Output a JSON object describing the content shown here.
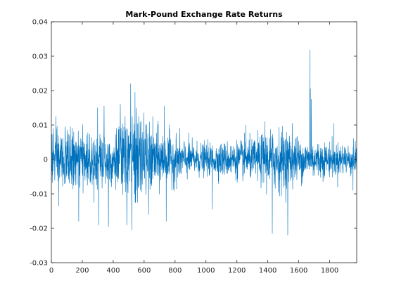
{
  "chart_data": {
    "type": "line",
    "title": "Mark-Pound Exchange Rate Returns",
    "xlabel": "",
    "ylabel": "",
    "xlim": [
      0,
      1975
    ],
    "ylim": [
      -0.03,
      0.04
    ],
    "x_ticks": [
      0,
      200,
      400,
      600,
      800,
      1000,
      1200,
      1400,
      1600,
      1800
    ],
    "x_tick_labels": [
      "0",
      "200",
      "400",
      "600",
      "800",
      "1000",
      "1200",
      "1400",
      "1600",
      "1800"
    ],
    "y_ticks": [
      -0.03,
      -0.02,
      -0.01,
      0,
      0.01,
      0.02,
      0.03,
      0.04
    ],
    "y_tick_labels": [
      "-0.03",
      "-0.02",
      "-0.01",
      "0",
      "0.01",
      "0.02",
      "0.03",
      "0.04"
    ],
    "grid": false,
    "n_points": 1975,
    "series_color": "#0072bd",
    "volatility_profile": [
      [
        0,
        0.0045
      ],
      [
        100,
        0.0042
      ],
      [
        200,
        0.0038
      ],
      [
        300,
        0.0042
      ],
      [
        400,
        0.004
      ],
      [
        470,
        0.0055
      ],
      [
        530,
        0.0068
      ],
      [
        600,
        0.0052
      ],
      [
        700,
        0.0042
      ],
      [
        800,
        0.0034
      ],
      [
        900,
        0.0025
      ],
      [
        1000,
        0.0022
      ],
      [
        1100,
        0.0024
      ],
      [
        1200,
        0.0026
      ],
      [
        1300,
        0.0028
      ],
      [
        1380,
        0.0038
      ],
      [
        1450,
        0.0045
      ],
      [
        1520,
        0.0042
      ],
      [
        1600,
        0.003
      ],
      [
        1700,
        0.0027
      ],
      [
        1800,
        0.0024
      ],
      [
        1900,
        0.0023
      ],
      [
        1975,
        0.0022
      ]
    ],
    "notable_points": [
      {
        "x": 11,
        "y": 0.009
      },
      {
        "x": 46,
        "y": -0.0135
      },
      {
        "x": 88,
        "y": 0.0095
      },
      {
        "x": 176,
        "y": -0.018
      },
      {
        "x": 298,
        "y": 0.015
      },
      {
        "x": 305,
        "y": -0.019
      },
      {
        "x": 340,
        "y": 0.0155
      },
      {
        "x": 368,
        "y": -0.0195
      },
      {
        "x": 445,
        "y": 0.016
      },
      {
        "x": 487,
        "y": -0.019
      },
      {
        "x": 512,
        "y": 0.022
      },
      {
        "x": 519,
        "y": -0.0205
      },
      {
        "x": 540,
        "y": 0.0195
      },
      {
        "x": 548,
        "y": 0.015
      },
      {
        "x": 598,
        "y": 0.0135
      },
      {
        "x": 628,
        "y": -0.016
      },
      {
        "x": 730,
        "y": 0.0155
      },
      {
        "x": 742,
        "y": -0.018
      },
      {
        "x": 1040,
        "y": -0.0145
      },
      {
        "x": 1258,
        "y": 0.01
      },
      {
        "x": 1380,
        "y": 0.011
      },
      {
        "x": 1428,
        "y": -0.0215
      },
      {
        "x": 1528,
        "y": -0.022
      },
      {
        "x": 1557,
        "y": 0.0105
      },
      {
        "x": 1671,
        "y": 0.0318
      },
      {
        "x": 1674,
        "y": 0.0205
      },
      {
        "x": 1681,
        "y": 0.0175
      },
      {
        "x": 1826,
        "y": 0.0105
      },
      {
        "x": 1950,
        "y": -0.009
      }
    ]
  }
}
